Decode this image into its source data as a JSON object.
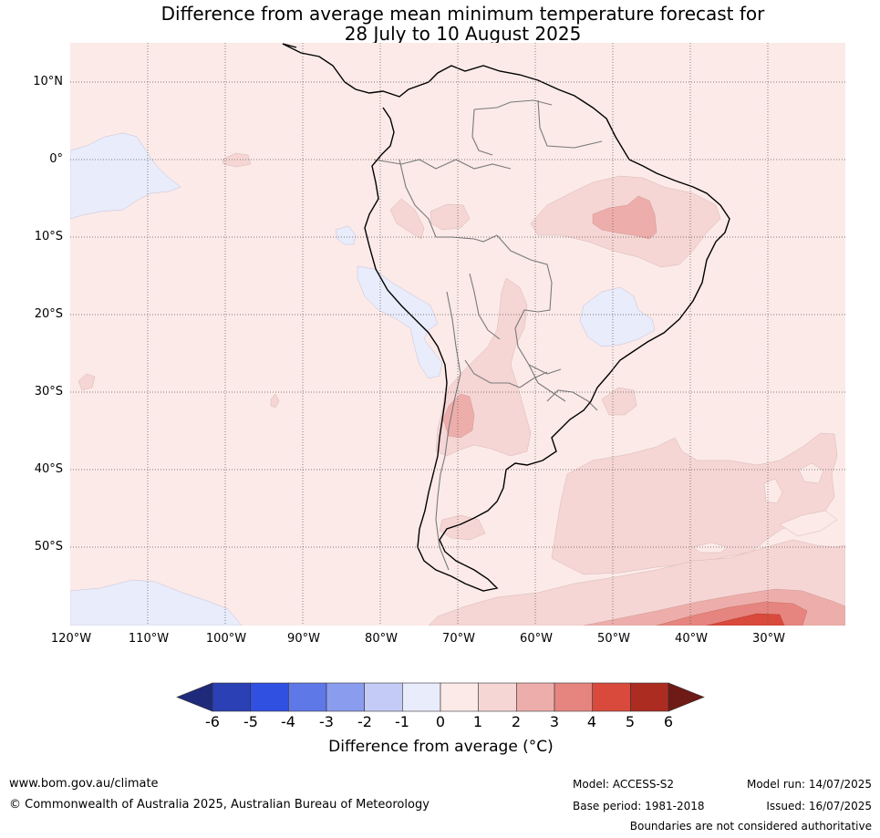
{
  "title": {
    "line1": "Difference from average mean minimum temperature forecast for",
    "line2": "28 July to 10 August 2025"
  },
  "map": {
    "region": "South America",
    "lat_labels": [
      "10°N",
      "0°",
      "10°S",
      "20°S",
      "30°S",
      "40°S",
      "50°S"
    ],
    "lon_labels": [
      "120°W",
      "110°W",
      "100°W",
      "90°W",
      "80°W",
      "70°W",
      "60°W",
      "50°W",
      "40°W",
      "30°W"
    ],
    "gridlines": "dotted",
    "fill_colors": {
      "range_0_1": "#fbeae8",
      "range_1_2": "#f5d6d4",
      "range_2_3": "#edaeab",
      "range_3_4": "#e6857f",
      "range_4_5": "#d94a3c",
      "range_m1_0": "#e8ecfb"
    }
  },
  "colorbar": {
    "ticks": [
      "-6",
      "-5",
      "-4",
      "-3",
      "-2",
      "-1",
      "0",
      "1",
      "2",
      "3",
      "4",
      "5",
      "6"
    ],
    "colors": [
      "#1f2a7a",
      "#2a40b4",
      "#2f50e0",
      "#5f78e8",
      "#8a9cee",
      "#c3cbf6",
      "#e8ecfb",
      "#fbeae8",
      "#f5d6d4",
      "#edaeab",
      "#e6857f",
      "#d94a3c",
      "#ac2c22",
      "#6e1a16"
    ],
    "label": "Difference from average (°C)"
  },
  "footer": {
    "website": "www.bom.gov.au/climate",
    "copyright": "© Commonwealth of Australia 2025, Australian Bureau of Meteorology",
    "model": "Model: ACCESS-S2",
    "base_period": "Base period: 1981-2018",
    "model_run": "Model run: 14/07/2025",
    "issued": "Issued: 16/07/2025",
    "disclaimer": "Boundaries are not considered authoritative"
  }
}
